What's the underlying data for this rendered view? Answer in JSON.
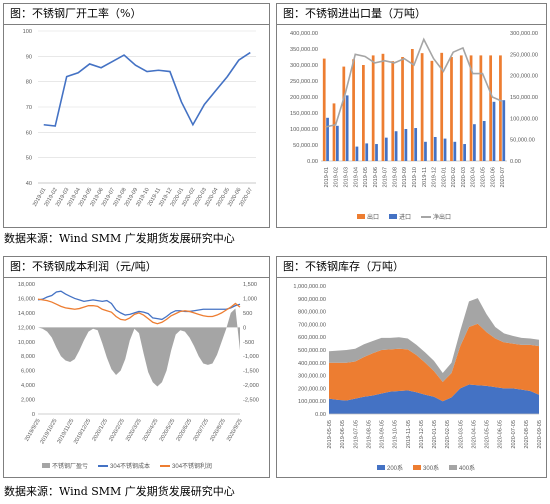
{
  "source_label": "数据来源：Wind SMM 广发期货发展研究中心",
  "panels": [
    {
      "title": "图：不锈钢厂开工率（%）",
      "chart_data": {
        "type": "line",
        "x": [
          "2019-01",
          "2019-02",
          "2019-03",
          "2019-04",
          "2019-05",
          "2019-06",
          "2019-07",
          "2019-08",
          "2019-09",
          "2019-10",
          "2019-11",
          "2019-12",
          "2020-01",
          "2020-02",
          "2020-03",
          "2020-04",
          "2020-05",
          "2020-06",
          "2020-07"
        ],
        "series": [
          {
            "values": [
              63,
              62.5,
              82,
              83.5,
              87,
              85.5,
              88,
              90.5,
              86.5,
              84,
              84.5,
              84,
              72,
              63,
              71,
              76.5,
              82,
              88.5,
              91.5
            ],
            "color": "#4472C4"
          }
        ],
        "ylim": [
          40,
          100
        ],
        "yticks": [
          40,
          50,
          60,
          70,
          80,
          90,
          100
        ],
        "grid": true
      }
    },
    {
      "title": "图：不锈钢进出口量（万吨）",
      "chart_data": {
        "type": "bar",
        "categories": [
          "2019-01",
          "2019-02",
          "2019-03",
          "2019-04",
          "2019-05",
          "2019-06",
          "2019-07",
          "2019-08",
          "2019-09",
          "2019-10",
          "2019-11",
          "2019-12",
          "2020-01",
          "2020-02",
          "2020-03",
          "2020-04",
          "2020-05",
          "2020-06",
          "2020-07"
        ],
        "series": [
          {
            "name": "出口",
            "values": [
              320000,
              180000,
              295000,
              318000,
              300000,
              330000,
              335000,
              312000,
              325000,
              350000,
              337000,
              313000,
              338000,
              325000,
              330000,
              330000,
              330000,
              330000,
              330000
            ],
            "color": "#ED7D31",
            "axis": "left"
          },
          {
            "name": "进口",
            "values": [
              135000,
              110000,
              205000,
              45000,
              55000,
              53000,
              73000,
              93000,
              100000,
              103000,
              60000,
              75000,
              70000,
              60000,
              53000,
              115000,
              125000,
              185000,
              190000
            ],
            "color": "#4472C4",
            "axis": "left"
          },
          {
            "name": "净出口",
            "values": [
              80000,
              85000,
              160000,
              250000,
              245000,
              230000,
              235000,
              230000,
              240000,
              225000,
              285000,
              240000,
              210000,
              255000,
              265000,
              205000,
              205000,
              150000,
              140000
            ],
            "color": "#A5A5A5",
            "axis": "right",
            "type": "line"
          }
        ],
        "ylim_left": [
          0,
          400000
        ],
        "yticks_left": [
          "0.00",
          "50,000.00",
          "100,000.00",
          "150,000.00",
          "200,000.00",
          "250,000.00",
          "300,000.00",
          "350,000.00",
          "400,000.00"
        ],
        "ylim_right": [
          0,
          300000
        ],
        "yticks_right": [
          "0.00",
          "50,000.00",
          "100,000.00",
          "150,000.00",
          "200,000.00",
          "250,000.00",
          "300,000.00"
        ],
        "legend": "bottom"
      }
    },
    {
      "title": "图：不锈钢成本利润（元/吨）",
      "chart_data": {
        "type": "area",
        "x_ticks": [
          "2019/9/25",
          "2019/10/25",
          "2019/11/25",
          "2019/12/25",
          "2020/1/25",
          "2020/2/25",
          "2020/3/25",
          "2020/4/25",
          "2020/5/25",
          "2020/6/25",
          "2020/7/25",
          "2020/8/25",
          "2020/9/25"
        ],
        "series": [
          {
            "name": "不锈钢厂盈亏",
            "axis": "right",
            "color": "#A5A5A5",
            "type": "area",
            "values": [
              0,
              -50,
              -150,
              -350,
              -700,
              -1000,
              -1150,
              -1200,
              -1100,
              -800,
              -450,
              -150,
              -50,
              -100,
              -550,
              -1050,
              -1450,
              -1650,
              -1500,
              -1100,
              -450,
              -50,
              -200,
              -900,
              -1550,
              -1900,
              -2050,
              -1900,
              -1500,
              -800,
              -250,
              -100,
              -150,
              -350,
              -650,
              -1000,
              -1250,
              -1300,
              -1250,
              -950,
              -500,
              -50,
              500,
              650,
              -800
            ]
          },
          {
            "name": "304不锈钢成本",
            "axis": "left",
            "color": "#4472C4",
            "type": "line",
            "values": [
              15800,
              15900,
              16200,
              16400,
              16900,
              17000,
              16600,
              16300,
              16000,
              15800,
              15600,
              15700,
              15800,
              15700,
              15600,
              15700,
              15300,
              14400,
              14000,
              13700,
              13800,
              14000,
              14200,
              14100,
              13900,
              13300,
              13200,
              13100,
              13500,
              14000,
              14300,
              14300,
              14200,
              14200,
              14300,
              14400,
              14500,
              14500,
              14500,
              14500,
              14500,
              14500,
              14700,
              15000,
              15200
            ]
          },
          {
            "name": "304不锈钢利润",
            "axis": "left",
            "color": "#ED7D31",
            "type": "line",
            "values": [
              15900,
              15800,
              15700,
              15500,
              15200,
              14900,
              14700,
              14600,
              14500,
              14600,
              14800,
              15000,
              15000,
              14900,
              14500,
              14300,
              14100,
              13500,
              13100,
              13000,
              13300,
              13800,
              14000,
              13700,
              13200,
              12700,
              12500,
              12700,
              13100,
              13600,
              13900,
              14200,
              14300,
              14200,
              14000,
              13800,
              13600,
              13500,
              13500,
              13700,
              14000,
              14400,
              14800,
              15300,
              14800
            ]
          }
        ],
        "ylim_left": [
          0,
          18000
        ],
        "yticks_left": [
          "0",
          "2,000",
          "4,000",
          "6,000",
          "8,000",
          "10,000",
          "12,000",
          "14,000",
          "16,000",
          "18,000"
        ],
        "ylim_right": [
          -3000,
          1500
        ],
        "yticks_right": [
          "-2,500",
          "-2,000",
          "-1,500",
          "-1,000",
          "-500",
          "0",
          "500",
          "1,000",
          "1,500"
        ],
        "legend": "bottom"
      }
    },
    {
      "title": "图：不锈钢库存（万吨）",
      "chart_data": {
        "type": "area",
        "stacked": true,
        "x_ticks": [
          "2019-05-05",
          "2019-06-05",
          "2019-07-05",
          "2019-08-05",
          "2019-09-05",
          "2019-10-05",
          "2019-11-05",
          "2019-12-05",
          "2020-01-05",
          "2020-02-05",
          "2020-03-05",
          "2020-04-05",
          "2020-05-05",
          "2020-06-05",
          "2020-07-05",
          "2020-08-05",
          "2020-09-05"
        ],
        "series": [
          {
            "name": "200系",
            "color": "#4472C4",
            "values": [
              120000,
              110000,
              105000,
              120000,
              135000,
              145000,
              160000,
              175000,
              180000,
              185000,
              170000,
              150000,
              135000,
              100000,
              130000,
              200000,
              230000,
              225000,
              220000,
              210000,
              200000,
              200000,
              190000,
              180000,
              150000
            ]
          },
          {
            "name": "300系",
            "color": "#ED7D31",
            "values": [
              280000,
              290000,
              295000,
              290000,
              310000,
              330000,
              340000,
              330000,
              330000,
              320000,
              290000,
              250000,
              200000,
              150000,
              190000,
              330000,
              450000,
              480000,
              420000,
              380000,
              360000,
              350000,
              350000,
              360000,
              380000
            ]
          },
          {
            "name": "400系",
            "color": "#A5A5A5",
            "values": [
              90000,
              95000,
              100000,
              100000,
              100000,
              95000,
              95000,
              90000,
              90000,
              85000,
              80000,
              80000,
              80000,
              70000,
              80000,
              120000,
              200000,
              200000,
              140000,
              90000,
              70000,
              60000,
              55000,
              50000,
              50000
            ]
          }
        ],
        "ylim": [
          0,
          1000000
        ],
        "yticks": [
          "0.00",
          "100,000.00",
          "200,000.00",
          "300,000.00",
          "400,000.00",
          "500,000.00",
          "600,000.00",
          "700,000.00",
          "800,000.00",
          "900,000.00",
          "1,000,000.00"
        ],
        "legend": "bottom"
      }
    }
  ]
}
